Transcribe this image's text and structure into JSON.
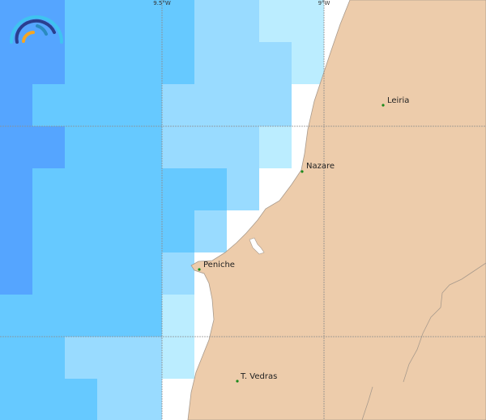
{
  "graticule": {
    "lon_labels": [
      "9.5°W",
      "9°W"
    ]
  },
  "colors": {
    "level1": "#55a5ff",
    "level2": "#66c9ff",
    "level3": "#99dbff",
    "level4": "#bbedff",
    "land": "#edccab",
    "coast": "#a89a8c",
    "city_dot": "#1a8a1a"
  },
  "cities": [
    {
      "name": "Leiria"
    },
    {
      "name": "Nazare"
    },
    {
      "name": "Peniche"
    },
    {
      "name": "T. Vedras"
    }
  ],
  "logo": {
    "icon": "rainbow-waves-logo-icon"
  }
}
